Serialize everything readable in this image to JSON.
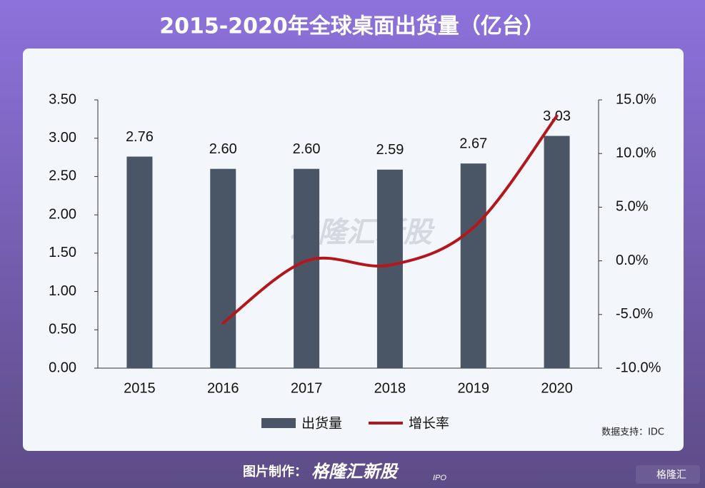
{
  "title": "2015-2020年全球桌面出货量（亿台）",
  "watermark": "格隆汇新股",
  "source": "数据支持：IDC",
  "footer": {
    "label": "图片制作：",
    "brand": "格隆汇新股",
    "brand_sub": "IPO",
    "corner_logo": "格隆汇"
  },
  "chart_data": {
    "type": "bar-line",
    "categories": [
      "2015",
      "2016",
      "2017",
      "2018",
      "2019",
      "2020"
    ],
    "series": [
      {
        "name": "出货量",
        "type": "bar",
        "color": "#4a5566",
        "values": [
          2.76,
          2.6,
          2.6,
          2.59,
          2.67,
          3.03
        ],
        "value_labels": [
          "2.76",
          "2.60",
          "2.60",
          "2.59",
          "2.67",
          "3.03"
        ]
      },
      {
        "name": "增长率",
        "type": "line",
        "axis": "y2",
        "color": "#b3171c",
        "values": [
          null,
          -5.8,
          0.0,
          -0.4,
          3.1,
          13.5
        ]
      }
    ],
    "ylim": [
      0,
      3.5
    ],
    "yticks": [
      {
        "value": 0,
        "label": "0.00"
      },
      {
        "value": 0.5,
        "label": "0.50"
      },
      {
        "value": 1,
        "label": "1.00"
      },
      {
        "value": 1.5,
        "label": "1.50"
      },
      {
        "value": 2,
        "label": "2.00"
      },
      {
        "value": 2.5,
        "label": "2.50"
      },
      {
        "value": 3,
        "label": "3.00"
      },
      {
        "value": 3.5,
        "label": "3.50"
      }
    ],
    "y2lim": [
      -10,
      15
    ],
    "y2ticks": [
      {
        "value": -10,
        "label": "-10.0%"
      },
      {
        "value": -5,
        "label": "-5.0%"
      },
      {
        "value": 0,
        "label": "0.0%"
      },
      {
        "value": 5,
        "label": "5.0%"
      },
      {
        "value": 10,
        "label": "10.0%"
      },
      {
        "value": 15,
        "label": "15.0%"
      }
    ],
    "legend": "bottom"
  }
}
